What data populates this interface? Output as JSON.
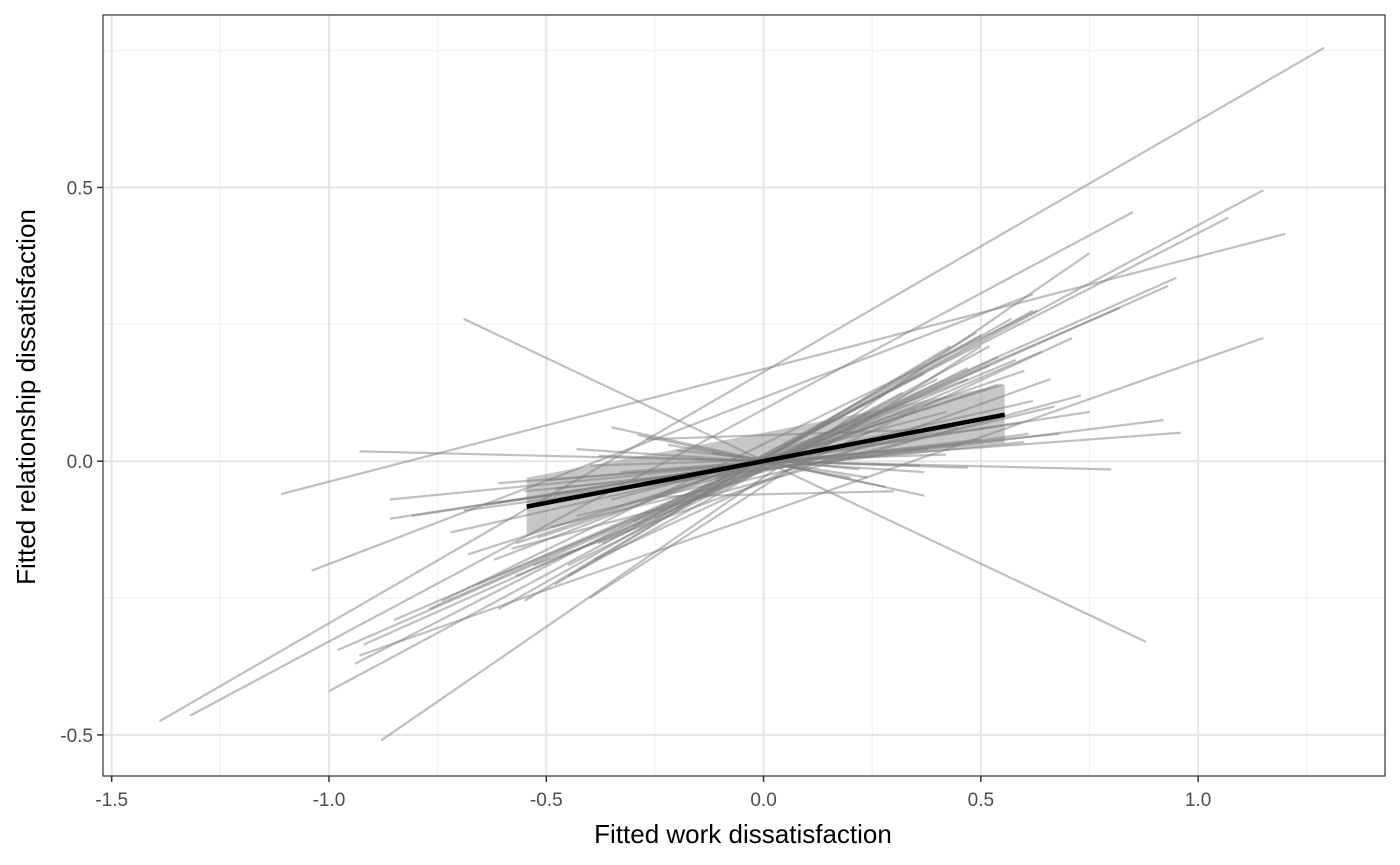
{
  "chart_data": {
    "type": "line",
    "title": "",
    "xlabel": "Fitted work dissatisfaction",
    "ylabel": "Fitted relationship dissatisfaction",
    "xlim": [
      -1.52,
      1.43
    ],
    "ylim": [
      -0.575,
      0.815
    ],
    "xticks": [
      -1.5,
      -1.0,
      -0.5,
      0.0,
      0.5,
      1.0
    ],
    "xtick_labels": [
      "-1.5",
      "-1.0",
      "-0.5",
      "0.0",
      "0.5",
      "1.0"
    ],
    "yticks": [
      -0.5,
      0.0,
      0.5
    ],
    "ytick_labels": [
      "-0.5",
      "0.0",
      "0.5"
    ],
    "grid": true,
    "theme": "black-and-white",
    "colors": {
      "individual_lines": "#7f7f7f",
      "mean_line": "#000000",
      "confidence_band": "#999999",
      "grid_major": "#e5e5e5",
      "grid_minor": "#f0f0f0",
      "panel_border": "#333333"
    },
    "mean_line": {
      "x": [
        -0.545,
        0.555
      ],
      "y": [
        -0.083,
        0.085
      ]
    },
    "confidence_band": {
      "x": [
        -0.545,
        0.0,
        0.555
      ],
      "lower": [
        -0.135,
        -0.007,
        0.033
      ],
      "upper": [
        -0.03,
        0.052,
        0.14
      ]
    },
    "individual_lines": [
      {
        "x": [
          -1.39,
          1.29
        ],
        "y": [
          -0.475,
          0.755
        ]
      },
      {
        "x": [
          -1.32,
          0.85
        ],
        "y": [
          -0.465,
          0.455
        ]
      },
      {
        "x": [
          -1.0,
          1.15
        ],
        "y": [
          -0.42,
          0.495
        ]
      },
      {
        "x": [
          -0.88,
          0.75
        ],
        "y": [
          -0.51,
          0.38
        ]
      },
      {
        "x": [
          -0.94,
          1.07
        ],
        "y": [
          -0.37,
          0.445
        ]
      },
      {
        "x": [
          -0.69,
          0.88
        ],
        "y": [
          0.26,
          -0.33
        ]
      },
      {
        "x": [
          -1.11,
          1.2
        ],
        "y": [
          -0.06,
          0.415
        ]
      },
      {
        "x": [
          -1.04,
          0.62
        ],
        "y": [
          -0.2,
          0.305
        ]
      },
      {
        "x": [
          -0.93,
          1.15
        ],
        "y": [
          -0.355,
          0.225
        ]
      },
      {
        "x": [
          -0.77,
          0.95
        ],
        "y": [
          -0.27,
          0.335
        ]
      },
      {
        "x": [
          -0.98,
          0.52
        ],
        "y": [
          -0.345,
          0.175
        ]
      },
      {
        "x": [
          -0.92,
          0.93
        ],
        "y": [
          -0.335,
          0.32
        ]
      },
      {
        "x": [
          -0.85,
          0.82
        ],
        "y": [
          -0.29,
          0.28
        ]
      },
      {
        "x": [
          -0.74,
          0.63
        ],
        "y": [
          -0.255,
          0.275
        ]
      },
      {
        "x": [
          -0.61,
          0.57
        ],
        "y": [
          -0.27,
          0.26
        ]
      },
      {
        "x": [
          -0.55,
          0.49
        ],
        "y": [
          -0.255,
          0.235
        ]
      },
      {
        "x": [
          -0.48,
          0.43
        ],
        "y": [
          -0.225,
          0.21
        ]
      },
      {
        "x": [
          -0.45,
          0.52
        ],
        "y": [
          -0.21,
          0.21
        ]
      },
      {
        "x": [
          -0.39,
          0.71
        ],
        "y": [
          -0.18,
          0.225
        ]
      },
      {
        "x": [
          -0.37,
          0.54
        ],
        "y": [
          -0.15,
          0.19
        ]
      },
      {
        "x": [
          -0.57,
          0.64
        ],
        "y": [
          -0.21,
          0.2
        ]
      },
      {
        "x": [
          -0.66,
          0.58
        ],
        "y": [
          -0.225,
          0.185
        ]
      },
      {
        "x": [
          -0.53,
          0.66
        ],
        "y": [
          -0.19,
          0.15
        ]
      },
      {
        "x": [
          -0.62,
          0.47
        ],
        "y": [
          -0.18,
          0.15
        ]
      },
      {
        "x": [
          -0.52,
          0.54
        ],
        "y": [
          -0.14,
          0.14
        ]
      },
      {
        "x": [
          -0.58,
          0.73
        ],
        "y": [
          -0.16,
          0.12
        ]
      },
      {
        "x": [
          -0.49,
          0.67
        ],
        "y": [
          -0.12,
          0.1
        ]
      },
      {
        "x": [
          -0.43,
          0.55
        ],
        "y": [
          -0.1,
          0.085
        ]
      },
      {
        "x": [
          -0.86,
          0.75
        ],
        "y": [
          -0.105,
          0.09
        ]
      },
      {
        "x": [
          -0.81,
          0.59
        ],
        "y": [
          -0.1,
          0.07
        ]
      },
      {
        "x": [
          -0.69,
          0.61
        ],
        "y": [
          -0.09,
          0.05
        ]
      },
      {
        "x": [
          -0.61,
          0.92
        ],
        "y": [
          -0.075,
          0.075
        ]
      },
      {
        "x": [
          -0.55,
          0.6
        ],
        "y": [
          -0.055,
          0.035
        ]
      },
      {
        "x": [
          -0.61,
          0.96
        ],
        "y": [
          -0.04,
          0.052
        ]
      },
      {
        "x": [
          -0.5,
          0.45
        ],
        "y": [
          -0.035,
          0.03
        ]
      },
      {
        "x": [
          -0.86,
          0.68
        ],
        "y": [
          -0.07,
          0.05
        ]
      },
      {
        "x": [
          -0.93,
          0.8
        ],
        "y": [
          0.018,
          -0.015
        ]
      },
      {
        "x": [
          -0.43,
          0.37
        ],
        "y": [
          0.022,
          -0.02
        ]
      },
      {
        "x": [
          -0.35,
          0.37
        ],
        "y": [
          0.062,
          -0.063
        ]
      },
      {
        "x": [
          -0.29,
          0.28
        ],
        "y": [
          0.048,
          -0.047
        ]
      },
      {
        "x": [
          -0.38,
          0.47
        ],
        "y": [
          0.01,
          -0.012
        ]
      },
      {
        "x": [
          -0.22,
          0.24
        ],
        "y": [
          0.03,
          -0.03
        ]
      },
      {
        "x": [
          -0.4,
          0.42
        ],
        "y": [
          -0.008,
          0.012
        ]
      },
      {
        "x": [
          -0.33,
          0.38
        ],
        "y": [
          -0.02,
          0.022
        ]
      },
      {
        "x": [
          -0.16,
          0.36
        ],
        "y": [
          0.004,
          -0.008
        ]
      },
      {
        "x": [
          -0.27,
          0.45
        ],
        "y": [
          0.04,
          0.06
        ]
      },
      {
        "x": [
          -0.25,
          0.3
        ],
        "y": [
          -0.065,
          -0.055
        ]
      },
      {
        "x": [
          -0.38,
          0.37
        ],
        "y": [
          -0.15,
          0.16
        ]
      },
      {
        "x": [
          -0.3,
          0.5
        ],
        "y": [
          -0.12,
          0.23
        ]
      },
      {
        "x": [
          -0.45,
          0.47
        ],
        "y": [
          -0.19,
          0.17
        ]
      },
      {
        "x": [
          -0.2,
          0.62
        ],
        "y": [
          -0.085,
          0.275
        ]
      },
      {
        "x": [
          -0.4,
          0.5
        ],
        "y": [
          -0.25,
          0.21
        ]
      },
      {
        "x": [
          -0.25,
          0.4
        ],
        "y": [
          -0.105,
          0.15
        ]
      },
      {
        "x": [
          -0.15,
          0.32
        ],
        "y": [
          -0.07,
          0.125
        ]
      },
      {
        "x": [
          -0.2,
          0.22
        ],
        "y": [
          0.02,
          -0.015
        ]
      },
      {
        "x": [
          -0.57,
          0.6
        ],
        "y": [
          -0.15,
          0.165
        ]
      },
      {
        "x": [
          -0.68,
          0.55
        ],
        "y": [
          -0.17,
          0.14
        ]
      },
      {
        "x": [
          -0.3,
          0.35
        ],
        "y": [
          -0.11,
          0.095
        ]
      },
      {
        "x": [
          -0.1,
          0.18
        ],
        "y": [
          -0.03,
          0.045
        ]
      },
      {
        "x": [
          -0.12,
          0.2
        ],
        "y": [
          0.015,
          -0.03
        ]
      },
      {
        "x": [
          -0.64,
          0.43
        ],
        "y": [
          -0.08,
          0.055
        ]
      },
      {
        "x": [
          -0.48,
          0.5
        ],
        "y": [
          -0.05,
          0.04
        ]
      },
      {
        "x": [
          -0.72,
          0.62
        ],
        "y": [
          -0.13,
          0.11
        ]
      },
      {
        "x": [
          -0.35,
          0.42
        ],
        "y": [
          -0.07,
          0.09
        ]
      }
    ]
  }
}
